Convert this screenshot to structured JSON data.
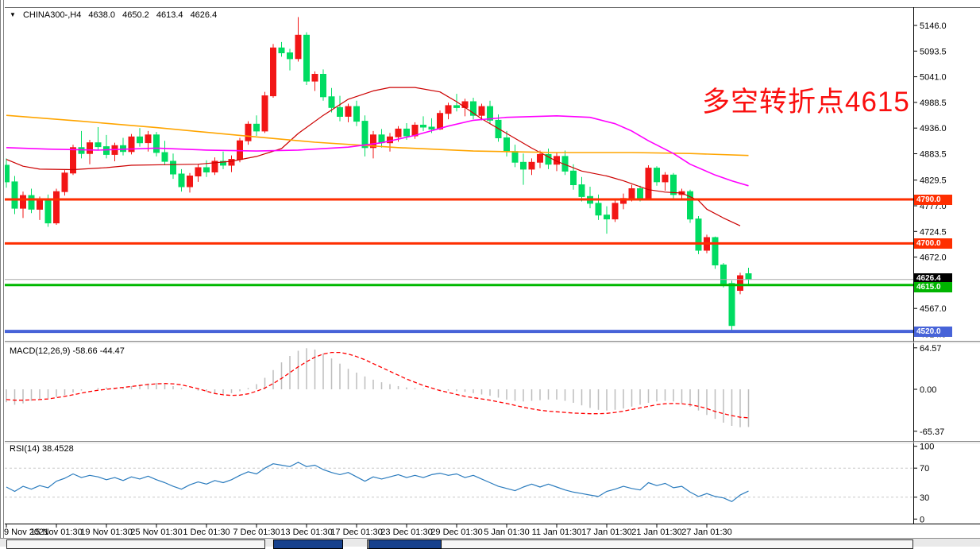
{
  "header": {
    "dropdown_icon": "▼",
    "symbol": "CHINA300-,H4",
    "open": "4638.0",
    "high": "4650.2",
    "low": "4613.4",
    "close": "4626.4"
  },
  "macd_panel": {
    "label": "MACD(12,26,9) -58.66 -44.47"
  },
  "rsi_panel": {
    "label": "RSI(14) 38.4528"
  },
  "annotation": {
    "text": "多空转折点4615",
    "color": "#fa0f0f"
  },
  "price_badges": [
    {
      "label": "4790.0",
      "bg": "#fe2e00",
      "price": 4790
    },
    {
      "label": "4700.0",
      "bg": "#fe2e00",
      "price": 4700
    },
    {
      "label": "4626.4",
      "bg": "#000000",
      "price": 4628.5
    },
    {
      "label": "4615.0",
      "bg": "#00b400",
      "price": 4610.5
    },
    {
      "label": "4520.0",
      "bg": "#4763d8",
      "price": 4520
    }
  ],
  "chart_data": {
    "type": "candlestick",
    "title": "CHINA300-,H4",
    "timeframe": "H4",
    "legend_position": "none",
    "grid": false,
    "price_axis": {
      "ticks": [
        5146.0,
        5093.5,
        5041.0,
        4988.5,
        4936.0,
        4883.5,
        4829.5,
        4777.0,
        4724.5,
        4672.0,
        4567.0,
        4514.5
      ]
    },
    "x_axis": {
      "labels": [
        "9 Nov 2021",
        "15 Nov 01:30",
        "19 Nov 01:30",
        "25 Nov 01:30",
        "1 Dec 01:30",
        "7 Dec 01:30",
        "13 Dec 01:30",
        "17 Dec 01:30",
        "23 Dec 01:30",
        "29 Dec 01:30",
        "5 Jan 01:30",
        "11 Jan 01:30",
        "17 Jan 01:30",
        "21 Jan 01:30",
        "27 Jan 01:30"
      ],
      "candles_per_label": 6
    },
    "up_color": "#f21616",
    "down_color": "#00dc62",
    "candles": [
      [
        4860,
        4874,
        4814,
        4826
      ],
      [
        4826,
        4838,
        4760,
        4772
      ],
      [
        4772,
        4806,
        4752,
        4798
      ],
      [
        4798,
        4812,
        4762,
        4770
      ],
      [
        4770,
        4796,
        4748,
        4788
      ],
      [
        4788,
        4800,
        4734,
        4742
      ],
      [
        4742,
        4812,
        4738,
        4806
      ],
      [
        4806,
        4850,
        4798,
        4844
      ],
      [
        4844,
        4902,
        4840,
        4896
      ],
      [
        4896,
        4930,
        4874,
        4884
      ],
      [
        4884,
        4912,
        4862,
        4906
      ],
      [
        4906,
        4938,
        4890,
        4898
      ],
      [
        4898,
        4922,
        4874,
        4882
      ],
      [
        4882,
        4906,
        4868,
        4900
      ],
      [
        4900,
        4916,
        4880,
        4888
      ],
      [
        4888,
        4924,
        4882,
        4918
      ],
      [
        4918,
        4936,
        4898,
        4906
      ],
      [
        4906,
        4930,
        4888,
        4922
      ],
      [
        4922,
        4928,
        4878,
        4886
      ],
      [
        4886,
        4910,
        4860,
        4868
      ],
      [
        4868,
        4884,
        4832,
        4842
      ],
      [
        4842,
        4852,
        4806,
        4816
      ],
      [
        4816,
        4844,
        4804,
        4838
      ],
      [
        4838,
        4862,
        4826,
        4855
      ],
      [
        4855,
        4870,
        4836,
        4846
      ],
      [
        4846,
        4876,
        4840,
        4868
      ],
      [
        4868,
        4888,
        4852,
        4860
      ],
      [
        4860,
        4880,
        4846,
        4872
      ],
      [
        4872,
        4916,
        4866,
        4910
      ],
      [
        4910,
        4950,
        4902,
        4944
      ],
      [
        4944,
        4962,
        4920,
        4930
      ],
      [
        4930,
        5010,
        4926,
        5002
      ],
      [
        5002,
        5108,
        4998,
        5100
      ],
      [
        5100,
        5112,
        5082,
        5090
      ],
      [
        5090,
        5098,
        5054,
        5078
      ],
      [
        5078,
        5163,
        5072,
        5126
      ],
      [
        5126,
        5132,
        5024,
        5032
      ],
      [
        5032,
        5052,
        5012,
        5046
      ],
      [
        5046,
        5056,
        4992,
        5000
      ],
      [
        5000,
        5018,
        4968,
        4978
      ],
      [
        4978,
        5002,
        4950,
        4960
      ],
      [
        4960,
        4986,
        4948,
        4980
      ],
      [
        4980,
        4992,
        4940,
        4950
      ],
      [
        4950,
        4962,
        4878,
        4896
      ],
      [
        4896,
        4930,
        4874,
        4922
      ],
      [
        4922,
        4934,
        4896,
        4906
      ],
      [
        4906,
        4926,
        4888,
        4918
      ],
      [
        4918,
        4940,
        4908,
        4934
      ],
      [
        4934,
        4946,
        4912,
        4920
      ],
      [
        4920,
        4948,
        4914,
        4942
      ],
      [
        4942,
        4960,
        4930,
        4938
      ],
      [
        4938,
        4956,
        4926,
        4934
      ],
      [
        4934,
        4972,
        4932,
        4966
      ],
      [
        4966,
        4988,
        4954,
        4982
      ],
      [
        4982,
        5006,
        4970,
        4978
      ],
      [
        4978,
        4996,
        4960,
        4990
      ],
      [
        4990,
        4998,
        4954,
        4962
      ],
      [
        4962,
        4986,
        4952,
        4980
      ],
      [
        4980,
        4992,
        4944,
        4952
      ],
      [
        4952,
        4964,
        4908,
        4916
      ],
      [
        4916,
        4930,
        4878,
        4888
      ],
      [
        4888,
        4902,
        4856,
        4866
      ],
      [
        4866,
        4884,
        4820,
        4852
      ],
      [
        4852,
        4874,
        4840,
        4866
      ],
      [
        4866,
        4890,
        4854,
        4882
      ],
      [
        4882,
        4894,
        4852,
        4862
      ],
      [
        4862,
        4886,
        4848,
        4878
      ],
      [
        4878,
        4890,
        4840,
        4848
      ],
      [
        4848,
        4862,
        4810,
        4820
      ],
      [
        4820,
        4836,
        4786,
        4796
      ],
      [
        4796,
        4816,
        4772,
        4782
      ],
      [
        4782,
        4800,
        4748,
        4758
      ],
      [
        4758,
        4776,
        4720,
        4750
      ],
      [
        4750,
        4788,
        4744,
        4782
      ],
      [
        4782,
        4802,
        4770,
        4792
      ],
      [
        4792,
        4820,
        4786,
        4812
      ],
      [
        4812,
        4818,
        4786,
        4792
      ],
      [
        4792,
        4860,
        4789,
        4854
      ],
      [
        4854,
        4858,
        4818,
        4826
      ],
      [
        4826,
        4846,
        4808,
        4840
      ],
      [
        4840,
        4844,
        4792,
        4800
      ],
      [
        4800,
        4812,
        4788,
        4806
      ],
      [
        4806,
        4810,
        4742,
        4750
      ],
      [
        4750,
        4756,
        4678,
        4686
      ],
      [
        4686,
        4718,
        4680,
        4712
      ],
      [
        4712,
        4714,
        4648,
        4656
      ],
      [
        4656,
        4660,
        4610,
        4618
      ],
      [
        4618,
        4624,
        4519,
        4532
      ],
      [
        4604,
        4640,
        4596,
        4634
      ],
      [
        4638,
        4650.2,
        4613.4,
        4626.4
      ]
    ],
    "overlays": {
      "ma_orange": {
        "color": "#ffa500",
        "points": [
          [
            0,
            4962
          ],
          [
            9,
            4950
          ],
          [
            18,
            4937
          ],
          [
            28,
            4921
          ],
          [
            37,
            4907
          ],
          [
            47,
            4896
          ],
          [
            56,
            4889
          ],
          [
            66,
            4886
          ],
          [
            75,
            4886
          ],
          [
            82,
            4884
          ],
          [
            89,
            4880
          ]
        ]
      },
      "ma_magenta": {
        "color": "#ff00ff",
        "points": [
          [
            0,
            4896
          ],
          [
            5,
            4893
          ],
          [
            11,
            4891
          ],
          [
            18,
            4895
          ],
          [
            24,
            4891
          ],
          [
            30,
            4889
          ],
          [
            35,
            4891
          ],
          [
            41,
            4897
          ],
          [
            45,
            4906
          ],
          [
            49,
            4921
          ],
          [
            53,
            4940
          ],
          [
            56,
            4952
          ],
          [
            60,
            4958
          ],
          [
            66,
            4961
          ],
          [
            70,
            4958
          ],
          [
            73,
            4945
          ],
          [
            75,
            4930
          ],
          [
            77,
            4910
          ],
          [
            80,
            4884
          ],
          [
            82,
            4862
          ],
          [
            85,
            4840
          ],
          [
            87,
            4828
          ],
          [
            89,
            4818
          ]
        ]
      },
      "ma_red": {
        "color": "#cc0000",
        "points": [
          [
            0,
            4872
          ],
          [
            2,
            4858
          ],
          [
            4,
            4852
          ],
          [
            8,
            4851
          ],
          [
            12,
            4855
          ],
          [
            15,
            4860
          ],
          [
            19,
            4861
          ],
          [
            23,
            4862
          ],
          [
            27,
            4868
          ],
          [
            30,
            4878
          ],
          [
            33,
            4894
          ],
          [
            35,
            4925
          ],
          [
            38,
            4962
          ],
          [
            41,
            4995
          ],
          [
            44,
            5012
          ],
          [
            46,
            5019
          ],
          [
            49,
            5019
          ],
          [
            52,
            5010
          ],
          [
            54,
            4990
          ],
          [
            57,
            4955
          ],
          [
            60,
            4925
          ],
          [
            63,
            4895
          ],
          [
            66,
            4868
          ],
          [
            69,
            4848
          ],
          [
            72,
            4838
          ],
          [
            74,
            4828
          ],
          [
            77,
            4810
          ],
          [
            79,
            4805
          ],
          [
            81,
            4803
          ],
          [
            83,
            4788
          ],
          [
            84,
            4770
          ],
          [
            86,
            4752
          ],
          [
            88,
            4736
          ]
        ]
      }
    },
    "hlines": [
      {
        "price": 4790,
        "color": "#fe2e00",
        "width": 3,
        "name": "resistance-4790"
      },
      {
        "price": 4700,
        "color": "#fe2e00",
        "width": 3,
        "name": "support-4700"
      },
      {
        "price": 4626.4,
        "color": "#a8a8a8",
        "width": 1,
        "name": "current-price"
      },
      {
        "price": 4615,
        "color": "#00b800",
        "width": 3,
        "name": "pivot-4615"
      },
      {
        "price": 4520,
        "color": "#4763d8",
        "width": 4,
        "name": "support-4520"
      }
    ],
    "macd": {
      "params": "12,26,9",
      "value": -58.66,
      "signal_value": -44.47,
      "axis_labels": [
        "64.57",
        "0.00",
        "-65.37"
      ],
      "axis_values": [
        64.57,
        0,
        -65.37
      ],
      "hist_color": "#bdbdbd",
      "signal_color": "#ff0000",
      "hist": [
        -20,
        -24,
        -22,
        -18,
        -16,
        -14,
        -12,
        -9,
        -5,
        -2,
        0,
        2,
        3,
        2,
        3,
        5,
        7,
        9,
        10,
        8,
        5,
        2,
        0,
        -2,
        -4,
        -6,
        -7,
        -6,
        -3,
        2,
        8,
        18,
        30,
        42,
        52,
        60,
        64,
        62,
        56,
        48,
        40,
        32,
        26,
        20,
        15,
        11,
        8,
        5,
        3,
        2,
        1,
        0,
        -1,
        -2,
        -3,
        -4,
        -6,
        -8,
        -10,
        -13,
        -16,
        -18,
        -19,
        -18,
        -17,
        -16,
        -16,
        -18,
        -21,
        -25,
        -29,
        -32,
        -33,
        -32,
        -30,
        -27,
        -24,
        -21,
        -19,
        -18,
        -19,
        -22,
        -27,
        -33,
        -40,
        -46,
        -52,
        -57,
        -59,
        -58.66
      ],
      "signal": [
        -16,
        -17,
        -17,
        -16.5,
        -16,
        -15,
        -13,
        -11,
        -8.5,
        -6,
        -3.5,
        -1.5,
        0,
        1.5,
        3,
        4.5,
        6,
        7.5,
        8.5,
        9,
        8.5,
        7,
        4,
        1,
        -3,
        -6.5,
        -8.5,
        -9.5,
        -9,
        -7,
        -3,
        2,
        9,
        17,
        26,
        35,
        43,
        50,
        55,
        57.5,
        57.5,
        55,
        51,
        46,
        40,
        34,
        28,
        22,
        16,
        11,
        6,
        2,
        -2,
        -5,
        -8,
        -11,
        -13,
        -15,
        -17,
        -19.5,
        -22,
        -25,
        -28,
        -30.5,
        -32.5,
        -34,
        -35,
        -36,
        -37,
        -37.5,
        -38,
        -38,
        -37.5,
        -36,
        -34,
        -31.5,
        -29,
        -26.5,
        -24,
        -22.5,
        -22,
        -22.5,
        -24,
        -26.5,
        -30,
        -34.5,
        -38,
        -41,
        -43.5,
        -44.47
      ]
    },
    "rsi": {
      "period": 14,
      "value": 38.4528,
      "color": "#2b7cbe",
      "axis_labels": [
        "100",
        "70",
        "30",
        "0"
      ],
      "axis_values": [
        100,
        70,
        30,
        0
      ],
      "levels": [
        70,
        30
      ],
      "values": [
        44,
        38,
        45,
        41,
        46,
        43,
        52,
        56,
        62,
        57,
        60,
        58,
        54,
        57,
        53,
        58,
        55,
        59,
        54,
        50,
        45,
        41,
        47,
        51,
        48,
        53,
        50,
        54,
        60,
        65,
        62,
        70,
        76,
        74,
        72,
        78,
        72,
        74,
        68,
        64,
        61,
        64,
        58,
        52,
        58,
        55,
        58,
        61,
        57,
        60,
        57,
        61,
        63,
        60,
        62,
        57,
        60,
        55,
        50,
        45,
        42,
        39,
        44,
        48,
        44,
        48,
        44,
        40,
        37,
        35,
        33,
        31,
        38,
        41,
        45,
        42,
        40,
        50,
        46,
        49,
        43,
        45,
        37,
        31,
        35,
        31,
        29,
        24,
        33,
        38.45
      ]
    }
  },
  "taskbar": {
    "fragments": [
      "window-fragment-left",
      "window-fragment-navy",
      "window-fragment-right"
    ]
  }
}
